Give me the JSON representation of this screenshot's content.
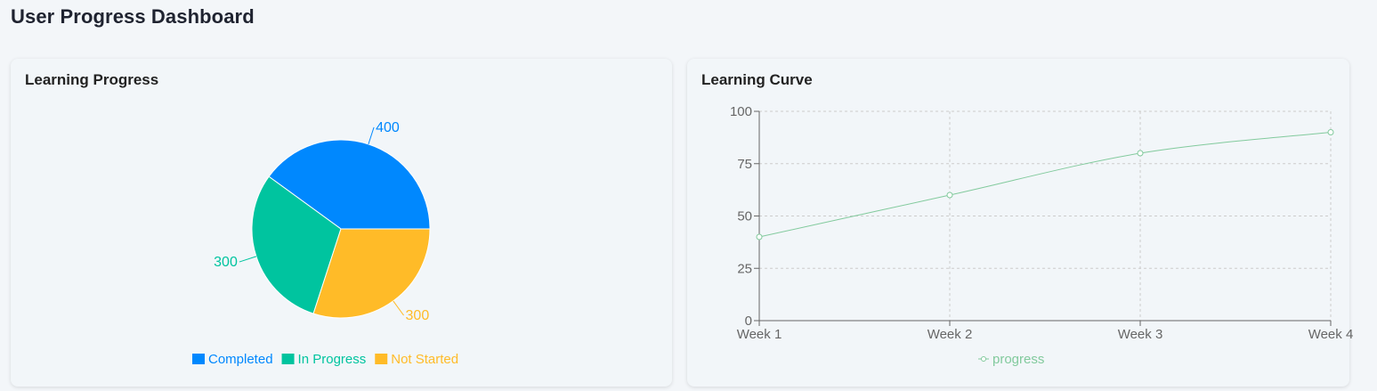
{
  "page": {
    "title": "User Progress Dashboard"
  },
  "cards": {
    "pie_title": "Learning Progress",
    "line_title": "Learning Curve"
  },
  "colors": {
    "completed": "#0088fe",
    "in_progress": "#00c49f",
    "not_started": "#ffbb28",
    "line": "#82ca9d",
    "grid": "#cccccc",
    "axis": "#666666"
  },
  "chart_data": [
    {
      "type": "pie",
      "title": "Learning Progress",
      "categories": [
        "Completed",
        "In Progress",
        "Not Started"
      ],
      "values": [
        400,
        300,
        300
      ],
      "colors": [
        "#0088fe",
        "#00c49f",
        "#ffbb28"
      ],
      "data_labels": [
        "400",
        "300",
        "300"
      ],
      "legend": "bottom-center"
    },
    {
      "type": "line",
      "title": "Learning Curve",
      "x": [
        "Week 1",
        "Week 2",
        "Week 3",
        "Week 4"
      ],
      "series": [
        {
          "name": "progress",
          "values": [
            40,
            60,
            80,
            90
          ],
          "color": "#82ca9d"
        }
      ],
      "ylim": [
        0,
        100
      ],
      "yticks": [
        "0",
        "25",
        "50",
        "75",
        "100"
      ],
      "grid": true,
      "legend": "bottom-center"
    }
  ]
}
